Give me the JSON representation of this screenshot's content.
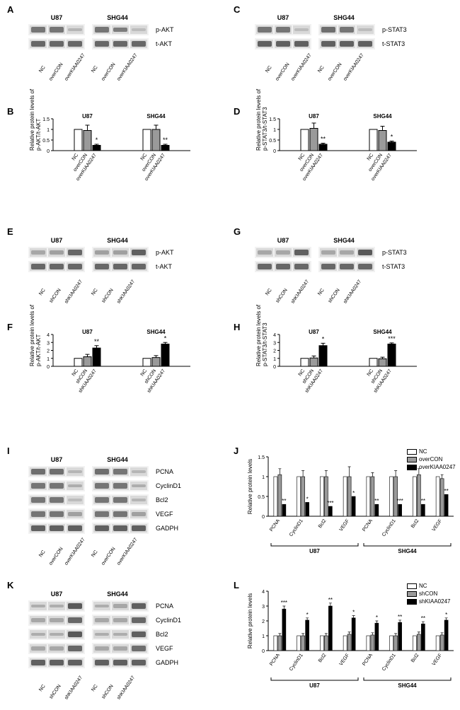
{
  "colors": {
    "bar_nc": "#ffffff",
    "bar_con": "#9a9a9a",
    "bar_treat": "#000000",
    "bar_stroke": "#000000",
    "axis": "#000000",
    "band": "#3a3a3a",
    "lane_bg": "#d9d9d9"
  },
  "cells": [
    "U87",
    "SHG44"
  ],
  "lanes_over": [
    "NC",
    "overCON",
    "overKIAA0247"
  ],
  "lanes_sh": [
    "NC",
    "shCON",
    "shKIAA0247"
  ],
  "panelA": {
    "rows": [
      "p-AKT",
      "t-AKT"
    ],
    "intensity": {
      "p-AKT": [
        [
          0.7,
          0.7,
          0.25
        ],
        [
          0.7,
          0.65,
          0.2
        ]
      ],
      "t-AKT": [
        [
          0.8,
          0.8,
          0.8
        ],
        [
          0.8,
          0.8,
          0.8
        ]
      ]
    }
  },
  "panelC": {
    "rows": [
      "p-STAT3",
      "t-STAT3"
    ],
    "intensity": {
      "p-STAT3": [
        [
          0.7,
          0.7,
          0.2
        ],
        [
          0.75,
          0.7,
          0.2
        ]
      ],
      "t-STAT3": [
        [
          0.85,
          0.85,
          0.85
        ],
        [
          0.85,
          0.85,
          0.85
        ]
      ]
    }
  },
  "panelE": {
    "rows": [
      "p-AKT",
      "t-AKT"
    ],
    "intensity": {
      "p-AKT": [
        [
          0.35,
          0.4,
          0.8
        ],
        [
          0.4,
          0.4,
          0.85
        ]
      ],
      "t-AKT": [
        [
          0.8,
          0.8,
          0.8
        ],
        [
          0.8,
          0.8,
          0.8
        ]
      ]
    }
  },
  "panelG": {
    "rows": [
      "p-STAT3",
      "t-STAT3"
    ],
    "intensity": {
      "p-STAT3": [
        [
          0.35,
          0.35,
          0.85
        ],
        [
          0.35,
          0.35,
          0.9
        ]
      ],
      "t-STAT3": [
        [
          0.8,
          0.8,
          0.8
        ],
        [
          0.8,
          0.8,
          0.8
        ]
      ]
    }
  },
  "panelI": {
    "rows": [
      "PCNA",
      "CyclinD1",
      "Bcl2",
      "VEGF",
      "GADPH"
    ],
    "intensity": {
      "PCNA": [
        [
          0.75,
          0.75,
          0.25
        ],
        [
          0.75,
          0.7,
          0.25
        ]
      ],
      "CyclinD1": [
        [
          0.7,
          0.7,
          0.3
        ],
        [
          0.7,
          0.7,
          0.3
        ]
      ],
      "Bcl2": [
        [
          0.7,
          0.7,
          0.2
        ],
        [
          0.7,
          0.7,
          0.25
        ]
      ],
      "VEGF": [
        [
          0.7,
          0.7,
          0.4
        ],
        [
          0.7,
          0.7,
          0.4
        ]
      ],
      "GADPH": [
        [
          0.85,
          0.85,
          0.85
        ],
        [
          0.85,
          0.85,
          0.85
        ]
      ]
    }
  },
  "panelK": {
    "rows": [
      "PCNA",
      "CyclinD1",
      "Bcl2",
      "VEGF",
      "GADPH"
    ],
    "intensity": {
      "PCNA": [
        [
          0.3,
          0.3,
          0.9
        ],
        [
          0.3,
          0.35,
          0.85
        ]
      ],
      "CyclinD1": [
        [
          0.35,
          0.35,
          0.8
        ],
        [
          0.35,
          0.35,
          0.8
        ]
      ],
      "Bcl2": [
        [
          0.3,
          0.3,
          0.9
        ],
        [
          0.3,
          0.3,
          0.85
        ]
      ],
      "VEGF": [
        [
          0.35,
          0.35,
          0.8
        ],
        [
          0.35,
          0.35,
          0.75
        ]
      ],
      "GADPH": [
        [
          0.85,
          0.85,
          0.85
        ],
        [
          0.85,
          0.85,
          0.85
        ]
      ]
    }
  },
  "chartB": {
    "ytitle": "Relative protein levels of\np-AKT/t-AKT",
    "ymax": 1.5,
    "yticks": [
      0,
      0.5,
      1.0,
      1.5
    ],
    "groups": [
      {
        "cell": "U87",
        "bars": [
          {
            "v": 1.0
          },
          {
            "v": 0.95,
            "err": 0.25
          },
          {
            "v": 0.25,
            "err": 0.05,
            "sig": "*"
          }
        ]
      },
      {
        "cell": "SHG44",
        "bars": [
          {
            "v": 1.0
          },
          {
            "v": 1.0,
            "err": 0.2
          },
          {
            "v": 0.25,
            "err": 0.05,
            "sig": "**"
          }
        ]
      }
    ],
    "lanes": "over"
  },
  "chartD": {
    "ytitle": "Relative protein levels of\np-STAT3/t-STAT3",
    "ymax": 1.5,
    "yticks": [
      0,
      0.5,
      1.0,
      1.5
    ],
    "groups": [
      {
        "cell": "U87",
        "bars": [
          {
            "v": 1.0
          },
          {
            "v": 1.05,
            "err": 0.25
          },
          {
            "v": 0.3,
            "err": 0.05,
            "sig": "**"
          }
        ]
      },
      {
        "cell": "SHG44",
        "bars": [
          {
            "v": 1.0
          },
          {
            "v": 0.95,
            "err": 0.2
          },
          {
            "v": 0.4,
            "err": 0.05,
            "sig": "*"
          }
        ]
      }
    ],
    "lanes": "over"
  },
  "chartF": {
    "ytitle": "Relative protein levels of\np-AKT/t-AKT",
    "ymax": 4,
    "yticks": [
      0,
      1,
      2,
      3,
      4
    ],
    "groups": [
      {
        "cell": "U87",
        "bars": [
          {
            "v": 1.0
          },
          {
            "v": 1.2,
            "err": 0.3
          },
          {
            "v": 2.3,
            "err": 0.3,
            "sig": "**"
          }
        ]
      },
      {
        "cell": "SHG44",
        "bars": [
          {
            "v": 1.0
          },
          {
            "v": 1.1,
            "err": 0.25
          },
          {
            "v": 2.8,
            "err": 0.2,
            "sig": "*"
          }
        ]
      }
    ],
    "lanes": "sh"
  },
  "chartH": {
    "ytitle": "Relative protein levels of\np-STAT3/t-STAT3",
    "ymax": 4,
    "yticks": [
      0,
      1,
      2,
      3,
      4
    ],
    "groups": [
      {
        "cell": "U87",
        "bars": [
          {
            "v": 1.0
          },
          {
            "v": 1.05,
            "err": 0.25
          },
          {
            "v": 2.6,
            "err": 0.3,
            "sig": "*"
          }
        ]
      },
      {
        "cell": "SHG44",
        "bars": [
          {
            "v": 1.0
          },
          {
            "v": 0.95,
            "err": 0.2
          },
          {
            "v": 2.8,
            "err": 0.15,
            "sig": "***"
          }
        ]
      }
    ],
    "lanes": "sh"
  },
  "chartJ": {
    "ytitle": "Relative protein levels",
    "ymax": 1.5,
    "yticks": [
      0,
      0.5,
      1.0,
      1.5
    ],
    "genes": [
      "PCNA",
      "CyclinD1",
      "Bcl2",
      "VEGF"
    ],
    "legend": [
      "NC",
      "overCON",
      "overKIAA0247"
    ],
    "groups": [
      {
        "cell": "U87",
        "bars": [
          [
            {
              "v": 1.0
            },
            {
              "v": 1.05,
              "err": 0.15
            },
            {
              "v": 0.3,
              "sig": "**"
            }
          ],
          [
            {
              "v": 1.0
            },
            {
              "v": 1.0,
              "err": 0.15
            },
            {
              "v": 0.35,
              "sig": "*"
            }
          ],
          [
            {
              "v": 1.0
            },
            {
              "v": 1.0,
              "err": 0.15
            },
            {
              "v": 0.25,
              "sig": "***"
            }
          ],
          [
            {
              "v": 1.0
            },
            {
              "v": 1.0,
              "err": 0.25
            },
            {
              "v": 0.5,
              "sig": "*"
            }
          ]
        ]
      },
      {
        "cell": "SHG44",
        "bars": [
          [
            {
              "v": 1.0
            },
            {
              "v": 1.0,
              "err": 0.1
            },
            {
              "v": 0.3,
              "sig": "**"
            }
          ],
          [
            {
              "v": 1.0
            },
            {
              "v": 1.0,
              "err": 0.15
            },
            {
              "v": 0.3,
              "sig": "***"
            }
          ],
          [
            {
              "v": 1.0
            },
            {
              "v": 1.05,
              "err": 0.15
            },
            {
              "v": 0.3,
              "sig": "**"
            }
          ],
          [
            {
              "v": 1.0
            },
            {
              "v": 0.95,
              "err": 0.1
            },
            {
              "v": 0.55,
              "sig": "**"
            }
          ]
        ]
      }
    ]
  },
  "chartL": {
    "ytitle": "Relative protein levels",
    "ymax": 4,
    "yticks": [
      0,
      1,
      2,
      3,
      4
    ],
    "genes": [
      "PCNA",
      "CyclinD1",
      "Bcl2",
      "VEGF"
    ],
    "legend": [
      "NC",
      "shCON",
      "shKIAA0247"
    ],
    "groups": [
      {
        "cell": "U87",
        "bars": [
          [
            {
              "v": 1.0
            },
            {
              "v": 1.0,
              "err": 0.15
            },
            {
              "v": 2.8,
              "err": 0.2,
              "sig": "***"
            }
          ],
          [
            {
              "v": 1.0
            },
            {
              "v": 1.0,
              "err": 0.15
            },
            {
              "v": 2.05,
              "err": 0.15,
              "sig": "*"
            }
          ],
          [
            {
              "v": 1.0
            },
            {
              "v": 1.0,
              "err": 0.15
            },
            {
              "v": 3.0,
              "err": 0.2,
              "sig": "**"
            }
          ],
          [
            {
              "v": 1.0
            },
            {
              "v": 1.1,
              "err": 0.15
            },
            {
              "v": 2.2,
              "err": 0.15,
              "sig": "*"
            }
          ]
        ]
      },
      {
        "cell": "SHG44",
        "bars": [
          [
            {
              "v": 1.0
            },
            {
              "v": 1.05,
              "err": 0.15
            },
            {
              "v": 1.85,
              "err": 0.15,
              "sig": "*"
            }
          ],
          [
            {
              "v": 1.0
            },
            {
              "v": 1.0,
              "err": 0.15
            },
            {
              "v": 1.9,
              "err": 0.15,
              "sig": "**"
            }
          ],
          [
            {
              "v": 1.0
            },
            {
              "v": 1.1,
              "err": 0.15
            },
            {
              "v": 1.8,
              "err": 0.15,
              "sig": "**"
            }
          ],
          [
            {
              "v": 1.0
            },
            {
              "v": 1.05,
              "err": 0.15
            },
            {
              "v": 2.05,
              "err": 0.15,
              "sig": "*"
            }
          ]
        ]
      }
    ]
  },
  "labels": {
    "A": "A",
    "B": "B",
    "C": "C",
    "D": "D",
    "E": "E",
    "F": "F",
    "G": "G",
    "H": "H",
    "I": "I",
    "J": "J",
    "K": "K",
    "L": "L"
  }
}
